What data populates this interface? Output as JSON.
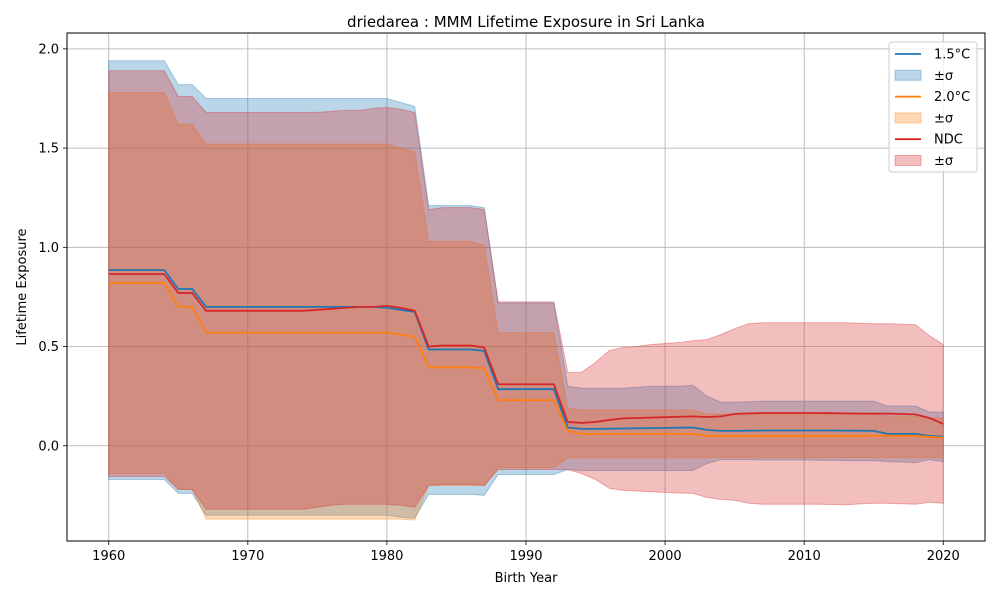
{
  "chart_data": {
    "type": "line",
    "title": "driedarea : MMM Lifetime Exposure in Sri Lanka",
    "xlabel": "Birth Year",
    "ylabel": "Lifetime Exposure",
    "xlim": [
      1957,
      2023
    ],
    "ylim": [
      -0.48,
      2.08
    ],
    "xticks": [
      1960,
      1970,
      1980,
      1990,
      2000,
      2010,
      2020
    ],
    "xtick_labels": [
      "1960",
      "1970",
      "1980",
      "1990",
      "2000",
      "2010",
      "2020"
    ],
    "yticks": [
      0.0,
      0.5,
      1.0,
      1.5,
      2.0
    ],
    "ytick_labels": [
      "0.0",
      "0.5",
      "1.0",
      "1.5",
      "2.0"
    ],
    "grid": true,
    "legend_position": "top-right",
    "x": [
      1960,
      1961,
      1962,
      1963,
      1964,
      1965,
      1966,
      1967,
      1968,
      1969,
      1970,
      1971,
      1972,
      1973,
      1974,
      1975,
      1976,
      1977,
      1978,
      1979,
      1980,
      1981,
      1982,
      1983,
      1984,
      1985,
      1986,
      1987,
      1988,
      1989,
      1990,
      1991,
      1992,
      1993,
      1994,
      1995,
      1996,
      1997,
      1998,
      1999,
      2000,
      2001,
      2002,
      2003,
      2004,
      2005,
      2006,
      2007,
      2008,
      2009,
      2010,
      2011,
      2012,
      2013,
      2014,
      2015,
      2016,
      2017,
      2018,
      2019,
      2020
    ],
    "series": [
      {
        "name": "1.5°C",
        "band_label": "±σ",
        "color": "#1f77b4",
        "values": [
          0.885,
          0.885,
          0.885,
          0.885,
          0.885,
          0.79,
          0.79,
          0.7,
          0.7,
          0.7,
          0.7,
          0.7,
          0.7,
          0.7,
          0.7,
          0.7,
          0.7,
          0.7,
          0.7,
          0.7,
          0.695,
          0.685,
          0.675,
          0.485,
          0.485,
          0.485,
          0.485,
          0.478,
          0.285,
          0.285,
          0.285,
          0.285,
          0.285,
          0.092,
          0.085,
          0.085,
          0.086,
          0.087,
          0.088,
          0.089,
          0.09,
          0.091,
          0.092,
          0.08,
          0.075,
          0.075,
          0.076,
          0.077,
          0.077,
          0.077,
          0.077,
          0.077,
          0.077,
          0.076,
          0.076,
          0.075,
          0.06,
          0.06,
          0.06,
          0.05,
          0.045
        ],
        "upper": [
          1.94,
          1.94,
          1.94,
          1.94,
          1.94,
          1.82,
          1.82,
          1.75,
          1.75,
          1.75,
          1.75,
          1.75,
          1.75,
          1.75,
          1.75,
          1.75,
          1.75,
          1.75,
          1.75,
          1.75,
          1.75,
          1.73,
          1.71,
          1.21,
          1.21,
          1.21,
          1.21,
          1.2,
          0.72,
          0.72,
          0.72,
          0.72,
          0.72,
          0.3,
          0.29,
          0.29,
          0.29,
          0.29,
          0.295,
          0.3,
          0.3,
          0.3,
          0.305,
          0.25,
          0.22,
          0.22,
          0.222,
          0.225,
          0.225,
          0.225,
          0.225,
          0.225,
          0.225,
          0.225,
          0.225,
          0.225,
          0.2,
          0.2,
          0.2,
          0.17,
          0.17
        ],
        "lower": [
          -0.17,
          -0.17,
          -0.17,
          -0.17,
          -0.17,
          -0.24,
          -0.24,
          -0.35,
          -0.35,
          -0.35,
          -0.35,
          -0.35,
          -0.35,
          -0.35,
          -0.35,
          -0.35,
          -0.35,
          -0.35,
          -0.35,
          -0.35,
          -0.35,
          -0.36,
          -0.365,
          -0.245,
          -0.245,
          -0.245,
          -0.245,
          -0.25,
          -0.145,
          -0.145,
          -0.145,
          -0.145,
          -0.145,
          -0.12,
          -0.125,
          -0.125,
          -0.125,
          -0.125,
          -0.125,
          -0.125,
          -0.125,
          -0.125,
          -0.125,
          -0.09,
          -0.07,
          -0.07,
          -0.07,
          -0.072,
          -0.072,
          -0.072,
          -0.072,
          -0.073,
          -0.074,
          -0.075,
          -0.075,
          -0.075,
          -0.08,
          -0.082,
          -0.085,
          -0.07,
          -0.08
        ]
      },
      {
        "name": "2.0°C",
        "band_label": "±σ",
        "color": "#ff7f0e",
        "values": [
          0.82,
          0.82,
          0.82,
          0.82,
          0.82,
          0.7,
          0.7,
          0.57,
          0.57,
          0.57,
          0.57,
          0.57,
          0.57,
          0.57,
          0.57,
          0.57,
          0.57,
          0.57,
          0.57,
          0.57,
          0.57,
          0.56,
          0.55,
          0.395,
          0.395,
          0.395,
          0.395,
          0.39,
          0.23,
          0.23,
          0.23,
          0.23,
          0.23,
          0.075,
          0.06,
          0.06,
          0.06,
          0.06,
          0.06,
          0.06,
          0.06,
          0.06,
          0.06,
          0.05,
          0.05,
          0.05,
          0.05,
          0.05,
          0.05,
          0.05,
          0.05,
          0.05,
          0.05,
          0.05,
          0.05,
          0.05,
          0.05,
          0.05,
          0.05,
          0.045,
          0.04
        ],
        "upper": [
          1.78,
          1.78,
          1.78,
          1.78,
          1.78,
          1.62,
          1.62,
          1.52,
          1.52,
          1.52,
          1.52,
          1.52,
          1.52,
          1.52,
          1.52,
          1.52,
          1.52,
          1.52,
          1.52,
          1.52,
          1.52,
          1.5,
          1.48,
          1.03,
          1.03,
          1.03,
          1.03,
          1.01,
          0.57,
          0.57,
          0.57,
          0.57,
          0.57,
          0.19,
          0.18,
          0.18,
          0.18,
          0.18,
          0.18,
          0.18,
          0.18,
          0.18,
          0.18,
          0.16,
          0.16,
          0.16,
          0.16,
          0.16,
          0.16,
          0.16,
          0.16,
          0.16,
          0.16,
          0.16,
          0.16,
          0.16,
          0.15,
          0.15,
          0.15,
          0.14,
          0.14
        ],
        "lower": [
          -0.14,
          -0.14,
          -0.14,
          -0.14,
          -0.14,
          -0.22,
          -0.22,
          -0.37,
          -0.37,
          -0.37,
          -0.37,
          -0.37,
          -0.37,
          -0.37,
          -0.37,
          -0.37,
          -0.37,
          -0.37,
          -0.37,
          -0.37,
          -0.37,
          -0.37,
          -0.375,
          -0.2,
          -0.2,
          -0.2,
          -0.2,
          -0.2,
          -0.11,
          -0.11,
          -0.11,
          -0.11,
          -0.11,
          -0.06,
          -0.06,
          -0.06,
          -0.06,
          -0.06,
          -0.06,
          -0.06,
          -0.06,
          -0.06,
          -0.06,
          -0.06,
          -0.06,
          -0.06,
          -0.06,
          -0.06,
          -0.06,
          -0.06,
          -0.06,
          -0.06,
          -0.06,
          -0.06,
          -0.06,
          -0.06,
          -0.06,
          -0.06,
          -0.06,
          -0.06,
          -0.06
        ]
      },
      {
        "name": "NDC",
        "band_label": "±σ",
        "color": "#d62728",
        "values": [
          0.865,
          0.865,
          0.865,
          0.865,
          0.865,
          0.77,
          0.77,
          0.68,
          0.68,
          0.68,
          0.68,
          0.68,
          0.68,
          0.68,
          0.68,
          0.685,
          0.69,
          0.695,
          0.7,
          0.7,
          0.705,
          0.695,
          0.68,
          0.5,
          0.505,
          0.505,
          0.505,
          0.495,
          0.31,
          0.31,
          0.31,
          0.31,
          0.31,
          0.12,
          0.115,
          0.12,
          0.13,
          0.138,
          0.14,
          0.142,
          0.144,
          0.146,
          0.148,
          0.145,
          0.148,
          0.16,
          0.163,
          0.165,
          0.165,
          0.165,
          0.165,
          0.165,
          0.164,
          0.163,
          0.162,
          0.162,
          0.162,
          0.16,
          0.158,
          0.14,
          0.11
        ],
        "upper": [
          1.89,
          1.89,
          1.89,
          1.89,
          1.89,
          1.76,
          1.76,
          1.68,
          1.68,
          1.68,
          1.68,
          1.68,
          1.68,
          1.68,
          1.68,
          1.68,
          1.685,
          1.69,
          1.69,
          1.7,
          1.705,
          1.695,
          1.68,
          1.19,
          1.2,
          1.2,
          1.2,
          1.19,
          0.725,
          0.725,
          0.725,
          0.725,
          0.725,
          0.37,
          0.37,
          0.42,
          0.48,
          0.495,
          0.5,
          0.51,
          0.515,
          0.52,
          0.53,
          0.535,
          0.56,
          0.59,
          0.615,
          0.62,
          0.62,
          0.62,
          0.62,
          0.62,
          0.62,
          0.62,
          0.617,
          0.615,
          0.615,
          0.613,
          0.61,
          0.555,
          0.51
        ],
        "lower": [
          -0.155,
          -0.155,
          -0.155,
          -0.155,
          -0.155,
          -0.22,
          -0.22,
          -0.32,
          -0.32,
          -0.32,
          -0.32,
          -0.32,
          -0.32,
          -0.32,
          -0.32,
          -0.31,
          -0.3,
          -0.295,
          -0.295,
          -0.295,
          -0.295,
          -0.3,
          -0.31,
          -0.2,
          -0.195,
          -0.195,
          -0.195,
          -0.2,
          -0.12,
          -0.12,
          -0.12,
          -0.12,
          -0.12,
          -0.12,
          -0.14,
          -0.17,
          -0.215,
          -0.225,
          -0.228,
          -0.232,
          -0.235,
          -0.238,
          -0.24,
          -0.26,
          -0.27,
          -0.275,
          -0.29,
          -0.295,
          -0.295,
          -0.295,
          -0.295,
          -0.295,
          -0.296,
          -0.297,
          -0.293,
          -0.29,
          -0.29,
          -0.292,
          -0.295,
          -0.285,
          -0.29
        ]
      }
    ]
  }
}
